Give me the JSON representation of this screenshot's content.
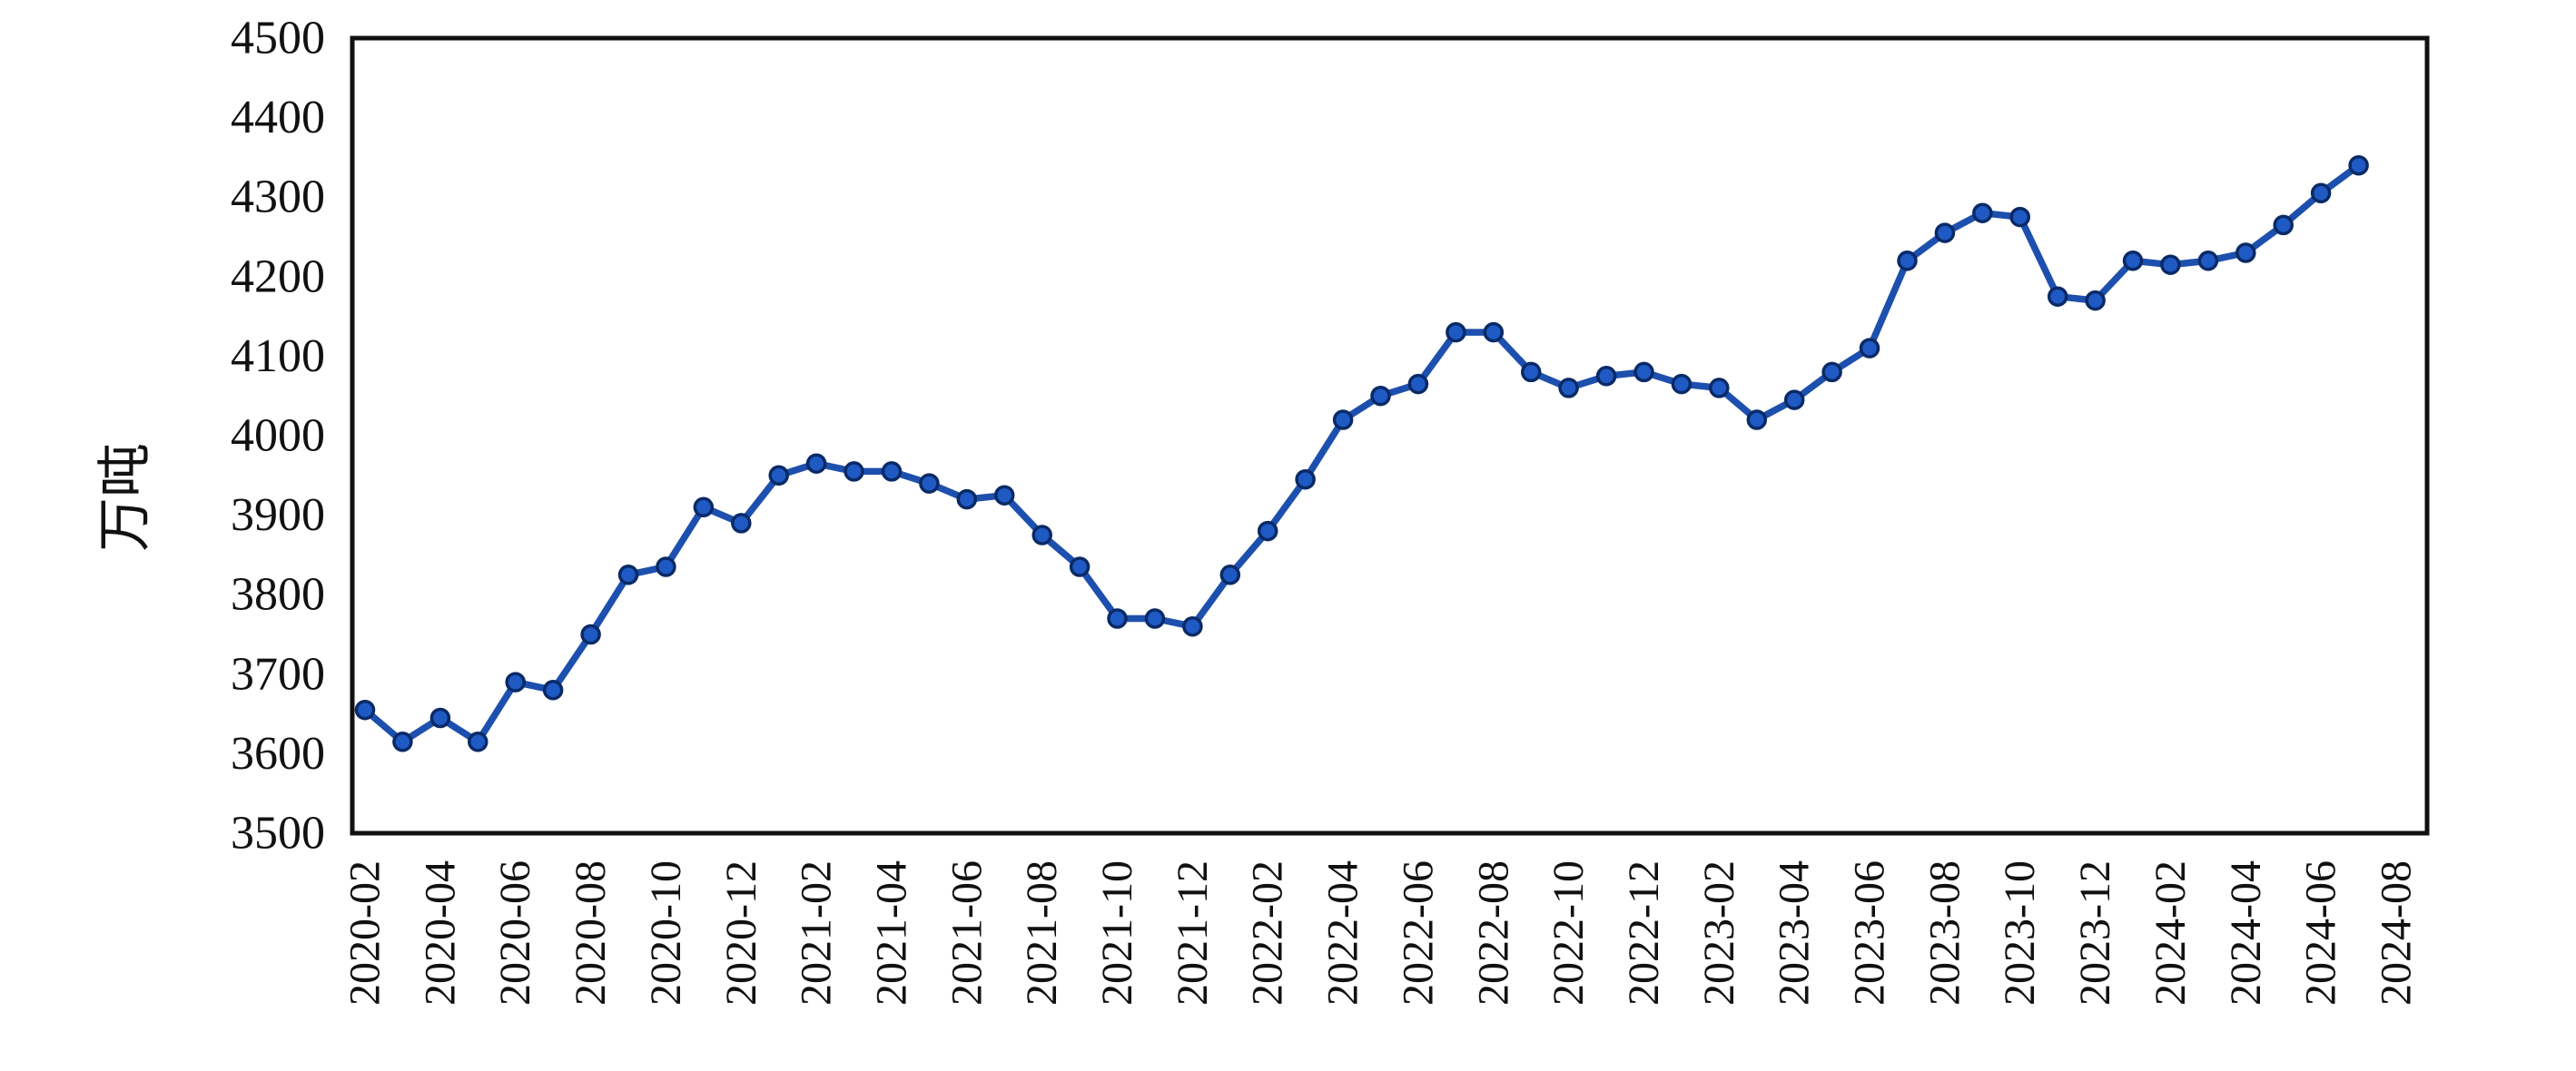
{
  "chart_data": {
    "type": "line",
    "title": "",
    "xlabel": "",
    "ylabel": "万吨",
    "ylim": [
      3500,
      4500
    ],
    "y_ticks": [
      4500,
      4400,
      4300,
      4200,
      4100,
      4000,
      3900,
      3800,
      3700,
      3600,
      3500
    ],
    "x_axis_start": "2020-02",
    "x_axis_end": "2024-08",
    "x_tick_labels": [
      "2020-02",
      "2020-04",
      "2020-06",
      "2020-08",
      "2020-10",
      "2020-12",
      "2021-02",
      "2021-04",
      "2021-06",
      "2021-08",
      "2021-10",
      "2021-12",
      "2022-02",
      "2022-04",
      "2022-06",
      "2022-08",
      "2022-10",
      "2022-12",
      "2023-02",
      "2023-04",
      "2023-06",
      "2023-08",
      "2023-10",
      "2023-12",
      "2024-02",
      "2024-04",
      "2024-06",
      "2024-08"
    ],
    "grid": false,
    "legend": "none",
    "marker": "circle",
    "line_color": "#1d50ae",
    "marker_fill_color": "#1f5ac4",
    "marker_edge_color": "#0a2a66",
    "axis_border_color": "#111111",
    "x": [
      "2020-02",
      "2020-03",
      "2020-04",
      "2020-05",
      "2020-06",
      "2020-07",
      "2020-08",
      "2020-09",
      "2020-10",
      "2020-11",
      "2020-12",
      "2021-01",
      "2021-02",
      "2021-03",
      "2021-04",
      "2021-05",
      "2021-06",
      "2021-07",
      "2021-08",
      "2021-09",
      "2021-10",
      "2021-11",
      "2021-12",
      "2022-01",
      "2022-02",
      "2022-03",
      "2022-04",
      "2022-05",
      "2022-06",
      "2022-07",
      "2022-08",
      "2022-09",
      "2022-10",
      "2022-11",
      "2022-12",
      "2023-01",
      "2023-02",
      "2023-03",
      "2023-04",
      "2023-05",
      "2023-06",
      "2023-07",
      "2023-08",
      "2023-09",
      "2023-10",
      "2023-11",
      "2023-12",
      "2024-01",
      "2024-02",
      "2024-03",
      "2024-04",
      "2024-05",
      "2024-06",
      "2024-07"
    ],
    "values": [
      3655,
      3615,
      3645,
      3615,
      3690,
      3680,
      3750,
      3825,
      3835,
      3910,
      3890,
      3950,
      3965,
      3955,
      3955,
      3940,
      3920,
      3925,
      3875,
      3835,
      3770,
      3770,
      3760,
      3825,
      3880,
      3945,
      4020,
      4050,
      4065,
      4130,
      4130,
      4080,
      4060,
      4075,
      4080,
      4065,
      4060,
      4020,
      4045,
      4080,
      4110,
      4220,
      4255,
      4280,
      4275,
      4175,
      4170,
      4220,
      4215,
      4220,
      4230,
      4265,
      4305,
      4340
    ]
  }
}
